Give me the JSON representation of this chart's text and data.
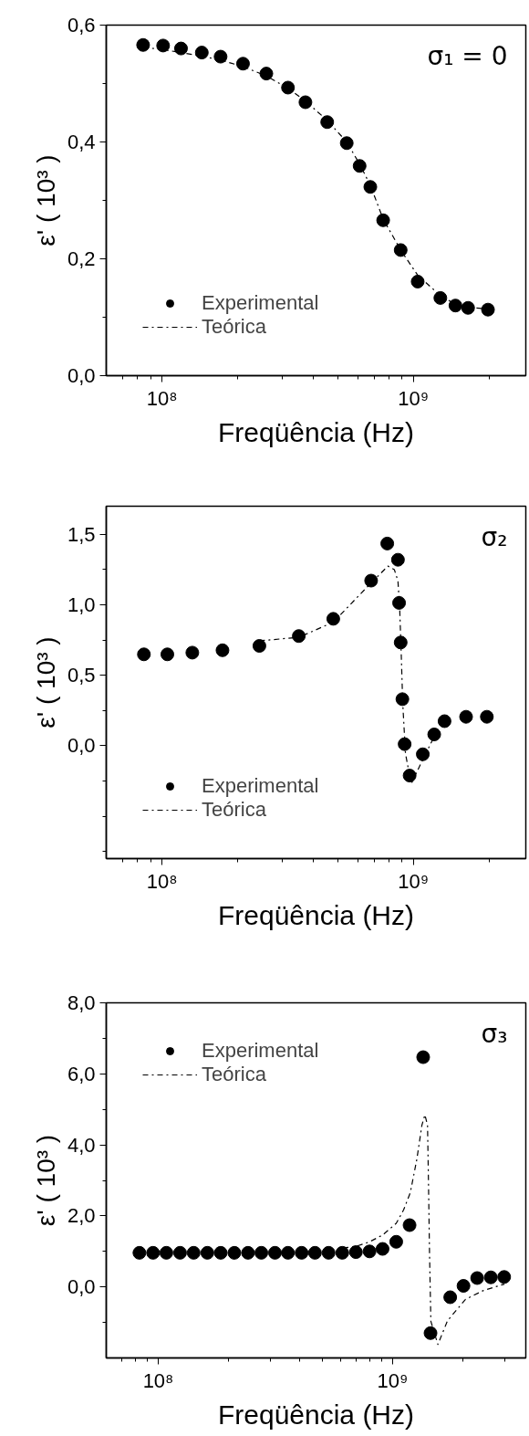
{
  "chart_data": [
    {
      "type": "scatter",
      "xlabel": "Freqüência (Hz)",
      "ylabel": "ε' ( 10³ )",
      "log": "x",
      "legend": "bottom left",
      "xlim": [
        60000000.0,
        2800000000.0
      ],
      "ylim": [
        0,
        0.6
      ],
      "xticks": [
        {
          "value": 70000000.0,
          "label": null
        },
        {
          "value": 80000000.0,
          "label": null
        },
        {
          "value": 90000000.0,
          "label": null
        },
        {
          "value": 100000000.0,
          "label": "10⁸"
        },
        {
          "value": 200000000.0,
          "label": null
        },
        {
          "value": 300000000.0,
          "label": null
        },
        {
          "value": 400000000.0,
          "label": null
        },
        {
          "value": 500000000.0,
          "label": null
        },
        {
          "value": 600000000.0,
          "label": null
        },
        {
          "value": 700000000.0,
          "label": null
        },
        {
          "value": 800000000.0,
          "label": null
        },
        {
          "value": 900000000.0,
          "label": null
        },
        {
          "value": 1000000000.0,
          "label": "10⁹"
        },
        {
          "value": 2000000000.0,
          "label": null
        }
      ],
      "yticks": [
        {
          "value": 0,
          "label": "0,0"
        },
        {
          "value": 0.1,
          "label": null
        },
        {
          "value": 0.2,
          "label": "0,2"
        },
        {
          "value": 0.3,
          "label": null
        },
        {
          "value": 0.4,
          "label": "0,4"
        },
        {
          "value": 0.5,
          "label": null
        },
        {
          "value": 0.6,
          "label": "0,6"
        }
      ],
      "annotations": [
        "σ₁ = 0"
      ],
      "series": [
        {
          "name": "Experimental",
          "marker": "circle",
          "color": "#000000",
          "x": [
            84100000.0,
            101000000.0,
            119000000.0,
            144000000.0,
            171000000.0,
            210000000.0,
            260000000.0,
            317000000.0,
            372000000.0,
            454000000.0,
            543000000.0,
            611000000.0,
            674000000.0,
            758000000.0,
            890000000.0,
            1040000000.0,
            1280000000.0,
            1470000000.0,
            1650000000.0,
            1980000000.0
          ],
          "values": [
            0.566,
            0.565,
            0.56,
            0.553,
            0.546,
            0.534,
            0.517,
            0.493,
            0.468,
            0.434,
            0.398,
            0.359,
            0.323,
            0.266,
            0.215,
            0.161,
            0.133,
            0.12,
            0.116,
            0.113
          ]
        },
        {
          "name": "Teórica",
          "type": "line",
          "line_style": "dashdot",
          "color": "#000000",
          "x": [
            84100000.0,
            101000000.0,
            119000000.0,
            144000000.0,
            171000000.0,
            210000000.0,
            260000000.0,
            317000000.0,
            372000000.0,
            454000000.0,
            543000000.0,
            611000000.0,
            674000000.0,
            758000000.0,
            890000000.0,
            1040000000.0,
            1280000000.0,
            1470000000.0,
            1650000000.0,
            1980000000.0
          ],
          "values": [
            0.562,
            0.558,
            0.553,
            0.547,
            0.54,
            0.529,
            0.513,
            0.492,
            0.47,
            0.437,
            0.4,
            0.362,
            0.326,
            0.268,
            0.215,
            0.172,
            0.137,
            0.122,
            0.117,
            0.114
          ]
        }
      ]
    },
    {
      "type": "scatter",
      "xlabel": "Freqüência (Hz)",
      "ylabel": "ε' ( 10³ )",
      "log": "x",
      "legend": "bottom left",
      "xlim": [
        60000000.0,
        2800000000.0
      ],
      "ylim": [
        -0.8,
        1.7
      ],
      "xticks": [
        {
          "value": 70000000.0,
          "label": null
        },
        {
          "value": 80000000.0,
          "label": null
        },
        {
          "value": 90000000.0,
          "label": null
        },
        {
          "value": 100000000.0,
          "label": "10⁸"
        },
        {
          "value": 200000000.0,
          "label": null
        },
        {
          "value": 300000000.0,
          "label": null
        },
        {
          "value": 400000000.0,
          "label": null
        },
        {
          "value": 500000000.0,
          "label": null
        },
        {
          "value": 600000000.0,
          "label": null
        },
        {
          "value": 700000000.0,
          "label": null
        },
        {
          "value": 800000000.0,
          "label": null
        },
        {
          "value": 900000000.0,
          "label": null
        },
        {
          "value": 1000000000.0,
          "label": "10⁹"
        },
        {
          "value": 2000000000.0,
          "label": null
        }
      ],
      "yticks": [
        {
          "value": -0.75,
          "label": null
        },
        {
          "value": -0.5,
          "label": null
        },
        {
          "value": -0.25,
          "label": null
        },
        {
          "value": 0,
          "label": "0,0"
        },
        {
          "value": 0.25,
          "label": null
        },
        {
          "value": 0.5,
          "label": "0,5"
        },
        {
          "value": 0.75,
          "label": null
        },
        {
          "value": 1.0,
          "label": "1,0"
        },
        {
          "value": 1.25,
          "label": null
        },
        {
          "value": 1.5,
          "label": "1,5"
        }
      ],
      "annotations": [
        "σ₂"
      ],
      "series": [
        {
          "name": "Experimental",
          "marker": "circle",
          "color": "#000000",
          "x": [
            84700000.0,
            105000000.0,
            132000000.0,
            174000000.0,
            244000000.0,
            350000000.0,
            480000000.0,
            679000000.0,
            787000000.0,
            868000000.0,
            877000000.0,
            890000000.0,
            904000000.0,
            923000000.0,
            966000000.0,
            1090000000.0,
            1210000000.0,
            1330000000.0,
            1620000000.0,
            1960000000.0
          ],
          "values": [
            0.649,
            0.649,
            0.661,
            0.678,
            0.709,
            0.779,
            0.901,
            1.172,
            1.435,
            1.32,
            1.014,
            0.733,
            0.331,
            0.012,
            -0.211,
            -0.06,
            0.081,
            0.175,
            0.206,
            0.206
          ]
        },
        {
          "name": "Teórica",
          "type": "line",
          "line_style": "dashdot",
          "color": "#000000",
          "x": [
            244000000.0,
            350000000.0,
            480000000.0,
            610000000.0,
            689000000.0,
            792000000.0,
            840000000.0,
            868000000.0,
            882000000.0,
            895000000.0,
            907000000.0,
            930000000.0,
            980000000.0,
            1070000000.0,
            1190000000.0,
            1250000000.0
          ],
          "values": [
            0.745,
            0.77,
            0.877,
            1.07,
            1.167,
            1.275,
            1.25,
            1.17,
            0.975,
            0.64,
            0.3,
            -0.055,
            -0.27,
            -0.127,
            0.04,
            0.12
          ]
        }
      ]
    },
    {
      "type": "scatter",
      "xlabel": "Freqüência (Hz)",
      "ylabel": "ε' ( 10³ )",
      "log": "x",
      "legend": "top left",
      "xlim": [
        60000000.0,
        3700000000.0
      ],
      "ylim": [
        -2.0,
        8.0
      ],
      "xticks": [
        {
          "value": 70000000.0,
          "label": null
        },
        {
          "value": 80000000.0,
          "label": null
        },
        {
          "value": 90000000.0,
          "label": null
        },
        {
          "value": 100000000.0,
          "label": "10⁸"
        },
        {
          "value": 200000000.0,
          "label": null
        },
        {
          "value": 300000000.0,
          "label": null
        },
        {
          "value": 400000000.0,
          "label": null
        },
        {
          "value": 500000000.0,
          "label": null
        },
        {
          "value": 600000000.0,
          "label": null
        },
        {
          "value": 700000000.0,
          "label": null
        },
        {
          "value": 800000000.0,
          "label": null
        },
        {
          "value": 900000000.0,
          "label": null
        },
        {
          "value": 1000000000.0,
          "label": "10⁹"
        },
        {
          "value": 2000000000.0,
          "label": null
        },
        {
          "value": 3000000000.0,
          "label": null
        }
      ],
      "yticks": [
        {
          "value": -1,
          "label": null
        },
        {
          "value": 0,
          "label": "0,0"
        },
        {
          "value": 1,
          "label": null
        },
        {
          "value": 2,
          "label": "2,0"
        },
        {
          "value": 3,
          "label": null
        },
        {
          "value": 4,
          "label": "4,0"
        },
        {
          "value": 5,
          "label": null
        },
        {
          "value": 6,
          "label": "6,0"
        },
        {
          "value": 7,
          "label": null
        },
        {
          "value": 8,
          "label": "8,0"
        }
      ],
      "annotations": [
        "σ₃"
      ],
      "series": [
        {
          "name": "Experimental",
          "marker": "circle",
          "color": "#000000",
          "x": [
            83100000.0,
            95000000.0,
            108300000.0,
            123900000.0,
            141600000.0,
            162000000.0,
            184700000.0,
            211200000.0,
            241500000.0,
            275300000.0,
            314800000.0,
            357600000.0,
            408900000.0,
            466300000.0,
            533100000.0,
            609800000.0,
            697200000.0,
            797100000.0,
            905800000.0,
            1036000000.0,
            1181000000.0,
            1350000000.0,
            1451000000.0,
            1761000000.0,
            2006000000.0,
            2294000000.0,
            2624000000.0,
            2991000000.0
          ],
          "values": [
            0.96,
            0.96,
            0.96,
            0.96,
            0.96,
            0.96,
            0.96,
            0.96,
            0.96,
            0.96,
            0.96,
            0.96,
            0.96,
            0.96,
            0.96,
            0.96,
            0.98,
            1.0,
            1.07,
            1.27,
            1.74,
            6.47,
            -1.3,
            -0.29,
            0.03,
            0.25,
            0.27,
            0.28
          ]
        },
        {
          "name": "Teórica",
          "type": "line",
          "line_style": "dashdot",
          "color": "#000000",
          "x": [
            533100000.0,
            579000000.0,
            697200000.0,
            797100000.0,
            905800000.0,
            1036000000.0,
            1114000000.0,
            1189000000.0,
            1269000000.0,
            1333000000.0,
            1373000000.0,
            1409000000.0,
            1423000000.0,
            1437000000.0,
            1456000000.0,
            1560000000.0,
            1715000000.0,
            2046000000.0,
            2442000000.0,
            3000000000.0
          ],
          "values": [
            1.03,
            1.08,
            1.14,
            1.27,
            1.46,
            1.79,
            2.17,
            2.65,
            3.6,
            4.55,
            4.85,
            4.55,
            2.84,
            0.93,
            -0.97,
            -1.62,
            -0.95,
            -0.35,
            -0.1,
            0.08
          ]
        }
      ]
    }
  ]
}
